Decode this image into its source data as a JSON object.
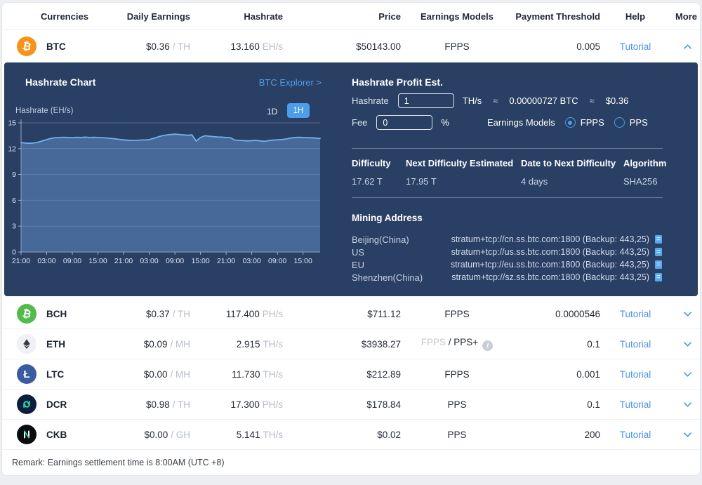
{
  "table_header": {
    "columns": [
      "Currencies",
      "Daily Earnings",
      "Hashrate",
      "Price",
      "Earnings Models",
      "Payment Threshold",
      "Help",
      "More"
    ]
  },
  "rows": [
    {
      "symbol": "BTC",
      "icon": "bitcoin-icon",
      "glyph": "₿",
      "earn": "$0.36",
      "earn_unit": "/ TH",
      "hash": "13.160",
      "hash_unit": "EH/s",
      "price": "$50143.00",
      "model": "FPPS",
      "threshold": "0.005",
      "help": "Tutorial",
      "state": "expanded"
    },
    {
      "symbol": "BCH",
      "icon": "bitcoin-cash-icon",
      "glyph": "₿",
      "earn": "$0.37",
      "earn_unit": "/ TH",
      "hash": "117.400",
      "hash_unit": "PH/s",
      "price": "$711.12",
      "model": "FPPS",
      "threshold": "0.0000546",
      "help": "Tutorial",
      "state": "collapsed"
    },
    {
      "symbol": "ETH",
      "icon": "ethereum-icon",
      "glyph": "",
      "earn": "$0.09",
      "earn_unit": "/ MH",
      "hash": "2.915",
      "hash_unit": "TH/s",
      "price": "$3938.27",
      "model_muted": "FPPS",
      "model": " / PPS+",
      "threshold": "0.1",
      "help": "Tutorial",
      "state": "collapsed"
    },
    {
      "symbol": "LTC",
      "icon": "litecoin-icon",
      "glyph": "Ł",
      "earn": "$0.00",
      "earn_unit": "/ MH",
      "hash": "11.730",
      "hash_unit": "TH/s",
      "price": "$212.89",
      "model": "FPPS",
      "threshold": "0.001",
      "help": "Tutorial",
      "state": "collapsed"
    },
    {
      "symbol": "DCR",
      "icon": "decred-icon",
      "glyph": "",
      "earn": "$0.98",
      "earn_unit": "/ TH",
      "hash": "17.300",
      "hash_unit": "PH/s",
      "price": "$178.84",
      "model": "PPS",
      "threshold": "0.1",
      "help": "Tutorial",
      "state": "collapsed"
    },
    {
      "symbol": "CKB",
      "icon": "nervos-icon",
      "glyph": "",
      "earn": "$0.00",
      "earn_unit": "/ GH",
      "hash": "5.141",
      "hash_unit": "TH/s",
      "price": "$0.02",
      "model": "PPS",
      "threshold": "200",
      "help": "Tutorial",
      "state": "collapsed"
    }
  ],
  "panel": {
    "chart_header": {
      "title": "Hashrate Chart",
      "explorer_link": "BTC Explorer >",
      "axis_label": "Hashrate (EH/s)",
      "range_1d": "1D",
      "range_1h": "1H",
      "range_selected": "1H"
    },
    "profit": {
      "title": "Hashrate Profit Est.",
      "hashrate_label": "Hashrate",
      "hashrate_value": "1",
      "hashrate_unit": "TH/s",
      "approx": "≈",
      "btc_value": "0.00000727 BTC",
      "usd_value": "$0.36",
      "fee_label": "Fee",
      "fee_value": "0",
      "fee_unit": "%",
      "models_label": "Earnings Models",
      "model_fpps": "FPPS",
      "model_pps": "PPS",
      "model_selected": "FPPS"
    },
    "difficulty": {
      "headers": [
        "Difficulty",
        "Next Difficulty Estimated",
        "Date to Next Difficulty",
        "Algorithm"
      ],
      "values": [
        "17.62 T",
        "17.95 T",
        "4 days",
        "SHA256"
      ]
    },
    "mining": {
      "title": "Mining Address",
      "rows": [
        {
          "region": "Beijing(China)",
          "address": "stratum+tcp://cn.ss.btc.com:1800 (Backup: 443,25)"
        },
        {
          "region": "US",
          "address": "stratum+tcp://us.ss.btc.com:1800 (Backup: 443,25)"
        },
        {
          "region": "EU",
          "address": "stratum+tcp://eu.ss.btc.com:1800 (Backup: 443,25)"
        },
        {
          "region": "Shenzhen(China)",
          "address": "stratum+tcp://sz.ss.btc.com:1800 (Backup: 443,25)"
        }
      ]
    }
  },
  "chart_data": {
    "type": "area",
    "title": "Hashrate Chart",
    "ylabel": "Hashrate (EH/s)",
    "ylim": [
      0,
      15
    ],
    "y_ticks": [
      0,
      3,
      6,
      9,
      12,
      15
    ],
    "x_step_hours": 1,
    "x_tick_every": 6,
    "x_tick_labels": [
      "21:00",
      "03:00",
      "09:00",
      "15:00",
      "21:00",
      "03:00",
      "09:00",
      "15:00",
      "21:00",
      "03:00",
      "09:00",
      "15:00"
    ],
    "grid": true,
    "legend": "none",
    "line_color": "#6FB1EC",
    "fill_color": "rgba(100,148,208,0.5)",
    "values": [
      12.7,
      12.65,
      12.62,
      12.66,
      12.75,
      12.9,
      13.05,
      13.18,
      13.28,
      13.3,
      13.32,
      13.3,
      13.28,
      13.32,
      13.3,
      13.34,
      13.3,
      13.32,
      13.3,
      13.28,
      13.24,
      13.2,
      13.14,
      13.08,
      13.02,
      12.98,
      12.95,
      12.96,
      13.0,
      13.0,
      13.05,
      13.2,
      13.35,
      13.5,
      13.58,
      13.64,
      13.68,
      13.65,
      13.6,
      13.56,
      13.6,
      12.88,
      13.3,
      13.5,
      13.45,
      13.4,
      13.36,
      13.34,
      13.3,
      13.28,
      13.0,
      12.96,
      12.94,
      12.9,
      12.94,
      12.96,
      12.9,
      12.86,
      12.94,
      13.0,
      13.02,
      13.06,
      13.12,
      13.22,
      13.3,
      13.32,
      13.3,
      13.28,
      13.26,
      13.22,
      13.18
    ]
  },
  "icons": {
    "info_glyph": "i"
  },
  "colors": {
    "accent_blue": "#4994E8",
    "panel_navy": "#2A3F64",
    "chart_line": "#6FB1EC",
    "btc_orange": "#F7931A",
    "bch_green": "#52BB4B",
    "ltc_blue": "#3A5BA0",
    "dcr_teal": "#2DD2A3",
    "ckb_green": "#3CC68A",
    "eth_dark": "#383A41"
  },
  "remark": "Remark: Earnings settlement time is 8:00AM (UTC +8)"
}
